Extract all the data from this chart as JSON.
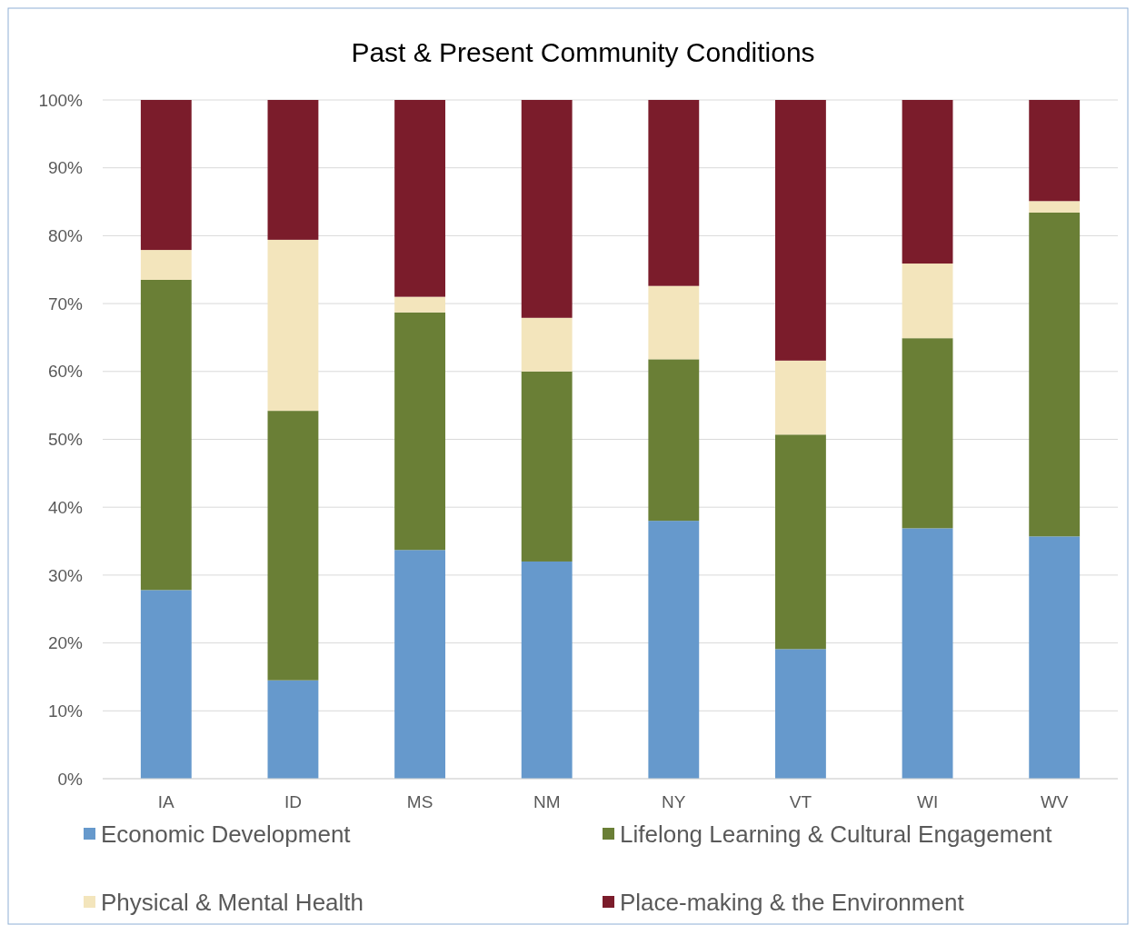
{
  "chart_data": {
    "type": "bar",
    "title": "Past & Present Community Conditions",
    "stacked": true,
    "categories": [
      "IA",
      "ID",
      "MS",
      "NM",
      "NY",
      "VT",
      "WI",
      "WV"
    ],
    "series": [
      {
        "name": "Economic Development",
        "color": "#6699cc",
        "values": [
          27.8,
          14.5,
          33.7,
          32.0,
          38.0,
          19.1,
          36.9,
          35.7
        ]
      },
      {
        "name": "Lifelong Learning & Cultural Engagement",
        "color": "#6a7f36",
        "values": [
          45.7,
          39.7,
          35.0,
          28.0,
          23.8,
          31.6,
          28.0,
          47.7
        ]
      },
      {
        "name": "Physical & Mental Health",
        "color": "#f3e5bc",
        "values": [
          4.4,
          25.2,
          2.3,
          7.9,
          10.8,
          10.9,
          11.0,
          1.7
        ]
      },
      {
        "name": "Place-making & the Environment",
        "color": "#7b1c2b",
        "values": [
          22.1,
          20.6,
          29.0,
          32.1,
          27.4,
          38.4,
          24.1,
          14.9
        ]
      }
    ],
    "ylim": [
      0,
      100
    ],
    "yticks": [
      {
        "value": 0,
        "label": "0%"
      },
      {
        "value": 10,
        "label": "10%"
      },
      {
        "value": 20,
        "label": "20%"
      },
      {
        "value": 30,
        "label": "30%"
      },
      {
        "value": 40,
        "label": "40%"
      },
      {
        "value": 50,
        "label": "50%"
      },
      {
        "value": 60,
        "label": "60%"
      },
      {
        "value": 70,
        "label": "70%"
      },
      {
        "value": 80,
        "label": "80%"
      },
      {
        "value": 90,
        "label": "90%"
      },
      {
        "value": 100,
        "label": "100%"
      }
    ],
    "grid": "y",
    "legend": "bottom"
  }
}
